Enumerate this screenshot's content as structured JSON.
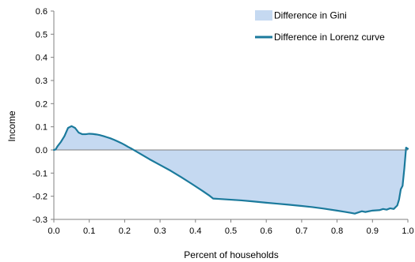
{
  "chart_data": {
    "type": "area",
    "xlabel": "Percent of households",
    "ylabel": "Income",
    "xlim": [
      0.0,
      1.0
    ],
    "ylim": [
      -0.3,
      0.6
    ],
    "x_ticks": [
      "0.0",
      "0.1",
      "0.2",
      "0.3",
      "0.4",
      "0.5",
      "0.6",
      "0.7",
      "0.8",
      "0.9",
      "1.0"
    ],
    "y_ticks": [
      "-0.3",
      "-0.2",
      "-0.1",
      "0.0",
      "0.1",
      "0.2",
      "0.3",
      "0.4",
      "0.5",
      "0.6"
    ],
    "legend_position": "top-right",
    "grid": false,
    "series": [
      {
        "name": "Difference in Gini",
        "kind": "area",
        "color": "#c5d9f1",
        "note": "filled region between the Lorenz difference curve and zero"
      },
      {
        "name": "Difference in Lorenz curve",
        "kind": "line",
        "color": "#1b7a9c",
        "x": [
          0.0,
          0.005,
          0.01,
          0.02,
          0.03,
          0.04,
          0.05,
          0.06,
          0.07,
          0.08,
          0.09,
          0.1,
          0.11,
          0.12,
          0.13,
          0.14,
          0.15,
          0.16,
          0.17,
          0.18,
          0.19,
          0.2,
          0.21,
          0.22,
          0.23,
          0.24,
          0.25,
          0.27,
          0.3,
          0.33,
          0.36,
          0.39,
          0.42,
          0.44,
          0.45,
          0.47,
          0.5,
          0.53,
          0.56,
          0.6,
          0.63,
          0.66,
          0.7,
          0.73,
          0.76,
          0.8,
          0.82,
          0.84,
          0.85,
          0.86,
          0.87,
          0.88,
          0.9,
          0.92,
          0.93,
          0.94,
          0.95,
          0.96,
          0.97,
          0.975,
          0.98,
          0.985,
          0.99,
          0.995,
          1.0
        ],
        "y": [
          0.0,
          0.002,
          0.015,
          0.035,
          0.06,
          0.095,
          0.103,
          0.095,
          0.075,
          0.068,
          0.068,
          0.07,
          0.069,
          0.067,
          0.064,
          0.06,
          0.055,
          0.05,
          0.044,
          0.037,
          0.03,
          0.022,
          0.013,
          0.005,
          -0.004,
          -0.013,
          -0.022,
          -0.04,
          -0.065,
          -0.09,
          -0.118,
          -0.147,
          -0.177,
          -0.198,
          -0.21,
          -0.212,
          -0.215,
          -0.218,
          -0.222,
          -0.228,
          -0.232,
          -0.236,
          -0.242,
          -0.247,
          -0.253,
          -0.262,
          -0.267,
          -0.272,
          -0.275,
          -0.27,
          -0.265,
          -0.268,
          -0.262,
          -0.26,
          -0.255,
          -0.258,
          -0.252,
          -0.255,
          -0.24,
          -0.215,
          -0.17,
          -0.155,
          -0.08,
          0.01,
          0.005
        ]
      }
    ]
  }
}
